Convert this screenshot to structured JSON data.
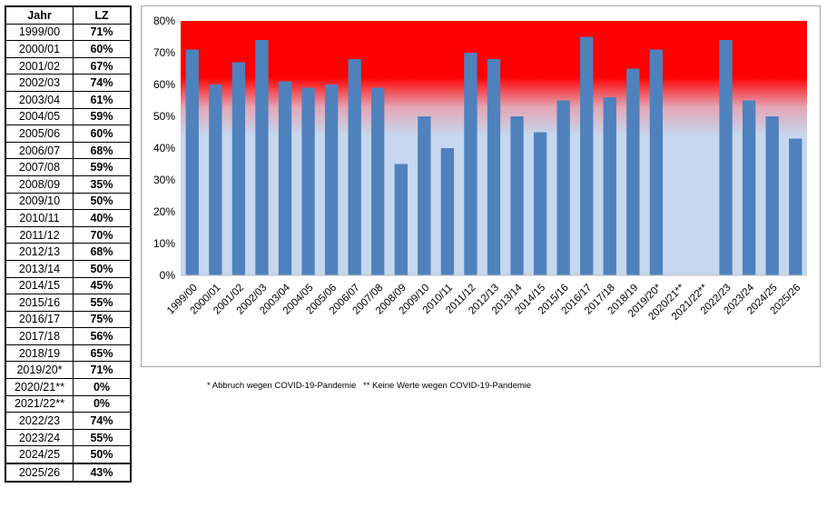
{
  "table": {
    "headers": [
      "Jahr",
      "LZ"
    ],
    "rows": [
      [
        "1999/00",
        "71%"
      ],
      [
        "2000/01",
        "60%"
      ],
      [
        "2001/02",
        "67%"
      ],
      [
        "2002/03",
        "74%"
      ],
      [
        "2003/04",
        "61%"
      ],
      [
        "2004/05",
        "59%"
      ],
      [
        "2005/06",
        "60%"
      ],
      [
        "2006/07",
        "68%"
      ],
      [
        "2007/08",
        "59%"
      ],
      [
        "2008/09",
        "35%"
      ],
      [
        "2009/10",
        "50%"
      ],
      [
        "2010/11",
        "40%"
      ],
      [
        "2011/12",
        "70%"
      ],
      [
        "2012/13",
        "68%"
      ],
      [
        "2013/14",
        "50%"
      ],
      [
        "2014/15",
        "45%"
      ],
      [
        "2015/16",
        "55%"
      ],
      [
        "2016/17",
        "75%"
      ],
      [
        "2017/18",
        "56%"
      ],
      [
        "2018/19",
        "65%"
      ],
      [
        "2019/20*",
        "71%"
      ],
      [
        "2020/21**",
        "0%"
      ],
      [
        "2021/22**",
        "0%"
      ],
      [
        "2022/23",
        "74%"
      ],
      [
        "2023/24",
        "55%"
      ],
      [
        "2024/25",
        "50%"
      ],
      [
        "2025/26",
        "43%"
      ]
    ]
  },
  "footnotes": {
    "note1": "* Abbruch wegen COVID-19-Pandemie",
    "note2": "** Keine Werte wegen COVID-19-Pandemie"
  },
  "chart_data": {
    "type": "bar",
    "categories": [
      "1999/00",
      "2000/01",
      "2001/02",
      "2002/03",
      "2003/04",
      "2004/05",
      "2005/06",
      "2006/07",
      "2007/08",
      "2008/09",
      "2009/10",
      "2010/11",
      "2011/12",
      "2012/13",
      "2013/14",
      "2014/15",
      "2015/16",
      "2016/17",
      "2017/18",
      "2018/19",
      "2019/20*",
      "2020/21**",
      "2021/22**",
      "2022/23",
      "2023/24",
      "2024/25",
      "2025/26"
    ],
    "values": [
      71,
      60,
      67,
      74,
      61,
      59,
      60,
      68,
      59,
      35,
      50,
      40,
      70,
      68,
      50,
      45,
      55,
      75,
      56,
      65,
      71,
      null,
      null,
      74,
      55,
      50,
      43
    ],
    "ylim": [
      0,
      80
    ],
    "yticks": [
      "0%",
      "10%",
      "20%",
      "30%",
      "40%",
      "50%",
      "60%",
      "70%",
      "80%"
    ],
    "grid": false,
    "legend": "none",
    "colors": {
      "bar": "#4f81bd",
      "bg_top": "#ff0000",
      "bg_mid": "#e4a6b4",
      "bg_low": "#c6d7ee"
    }
  }
}
